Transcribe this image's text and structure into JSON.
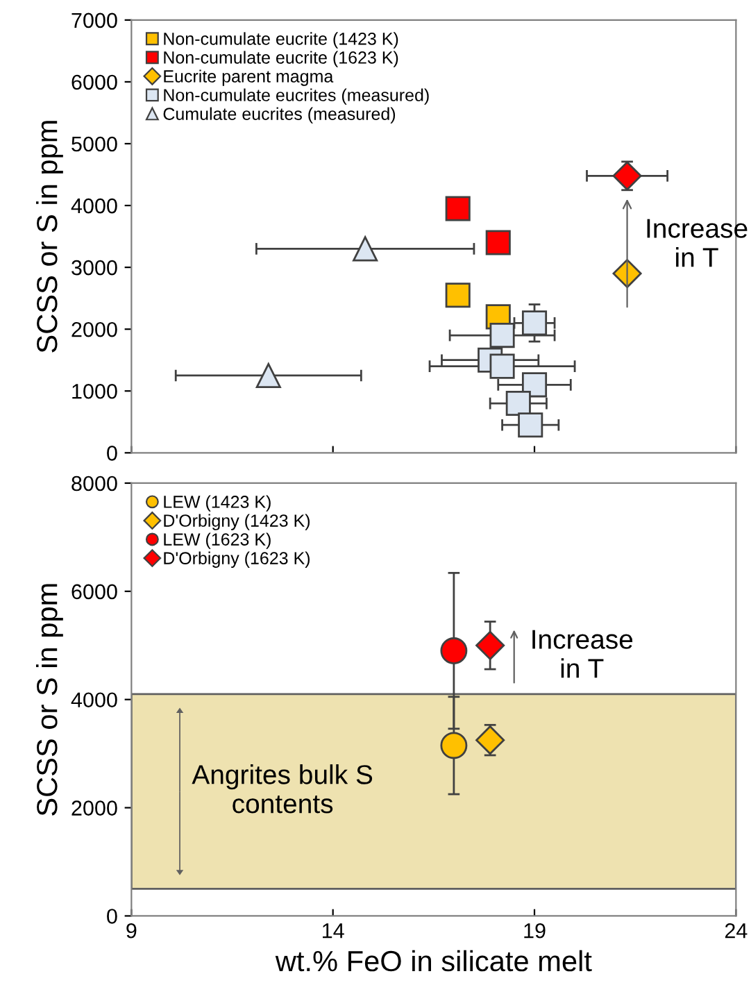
{
  "chart_data": [
    {
      "type": "scatter",
      "ylabel": "SCSS or S in ppm",
      "xlim": [
        9,
        24
      ],
      "xticks": [
        {
          "value": 9,
          "label": null
        },
        {
          "value": 14,
          "label": null
        },
        {
          "value": 19,
          "label": null
        },
        {
          "value": 24,
          "label": null
        }
      ],
      "ylim": [
        0,
        7000
      ],
      "yticks": [
        0,
        1000,
        2000,
        3000,
        4000,
        5000,
        6000,
        7000
      ],
      "tick_labels": "y",
      "grid": false,
      "legend": "top left",
      "series": [
        {
          "name": "Non-cumulate eucrite (1423 K)",
          "color": "#ffc000",
          "marker": "square",
          "x": [
            17.1,
            18.1
          ],
          "values": [
            2550,
            2200
          ]
        },
        {
          "name": "Non-cumulate eucrite (1623 K)",
          "color": "#ff0000",
          "marker": "square",
          "x": [
            17.1,
            18.1
          ],
          "values": [
            3950,
            3400
          ]
        },
        {
          "name": "Eucrite parent magma",
          "color": "#ffc000",
          "marker": "diamond",
          "x": [
            21.3
          ],
          "values": [
            2900
          ]
        },
        {
          "name": null,
          "color": "#ff0000",
          "marker": "diamond",
          "x": [
            21.3
          ],
          "values": [
            4480
          ],
          "errors": [
            230
          ],
          "xerrors": [
            1.0
          ]
        },
        {
          "name": "Non-cumulate eucrites (measured)",
          "color": "#dce6f2",
          "marker": "square",
          "x": [
            19.0,
            18.2,
            17.9,
            18.2,
            19.0,
            18.6,
            18.9
          ],
          "values": [
            2100,
            1900,
            1500,
            1400,
            1100,
            800,
            450
          ],
          "errors": [
            300,
            null,
            null,
            null,
            null,
            null,
            null
          ],
          "xerrors": [
            0.5,
            1.3,
            1.2,
            1.8,
            0.9,
            0.7,
            0.7
          ]
        },
        {
          "name": "Cumulate eucrites (measured)",
          "color": "#dce6f2",
          "marker": "triangle",
          "x": [
            14.8,
            12.4
          ],
          "values": [
            3300,
            1250
          ],
          "xerrors": [
            2.7,
            2.3
          ]
        }
      ],
      "annotations": [
        {
          "text": "Increase\nin T",
          "x": 21.3,
          "y": 4480
        }
      ]
    },
    {
      "type": "scatter",
      "xlabel": "wt.% FeO in silicate melt",
      "ylabel": "SCSS or S in ppm",
      "xlim": [
        9,
        24
      ],
      "xticks": [
        9,
        14,
        19,
        24
      ],
      "ylim": [
        0,
        8000
      ],
      "yticks": [
        0,
        2000,
        4000,
        6000,
        8000
      ],
      "grid": false,
      "legend": "top left",
      "series": [
        {
          "name": "LEW (1423 K)",
          "color": "#ffc000",
          "marker": "circle",
          "x": [
            17.0
          ],
          "values": [
            3150
          ],
          "errors": [
            900
          ]
        },
        {
          "name": "D'Orbigny (1423 K)",
          "color": "#ffc000",
          "marker": "diamond",
          "x": [
            17.9
          ],
          "values": [
            3250
          ],
          "errors": [
            280
          ]
        },
        {
          "name": "LEW (1623 K)",
          "color": "#ff0000",
          "marker": "circle",
          "x": [
            17.0
          ],
          "values": [
            4900
          ],
          "errors": [
            1440
          ]
        },
        {
          "name": "D'Orbigny (1623 K)",
          "color": "#ff0000",
          "marker": "diamond",
          "x": [
            17.9
          ],
          "values": [
            5000
          ],
          "errors": [
            440
          ]
        }
      ],
      "bands": [
        {
          "axis": "y",
          "from": 500,
          "to": 4100,
          "label": "Angrites bulk S\ncontents",
          "color": "#eee2b0"
        }
      ],
      "annotations": [
        "Increase\nin T"
      ]
    }
  ]
}
